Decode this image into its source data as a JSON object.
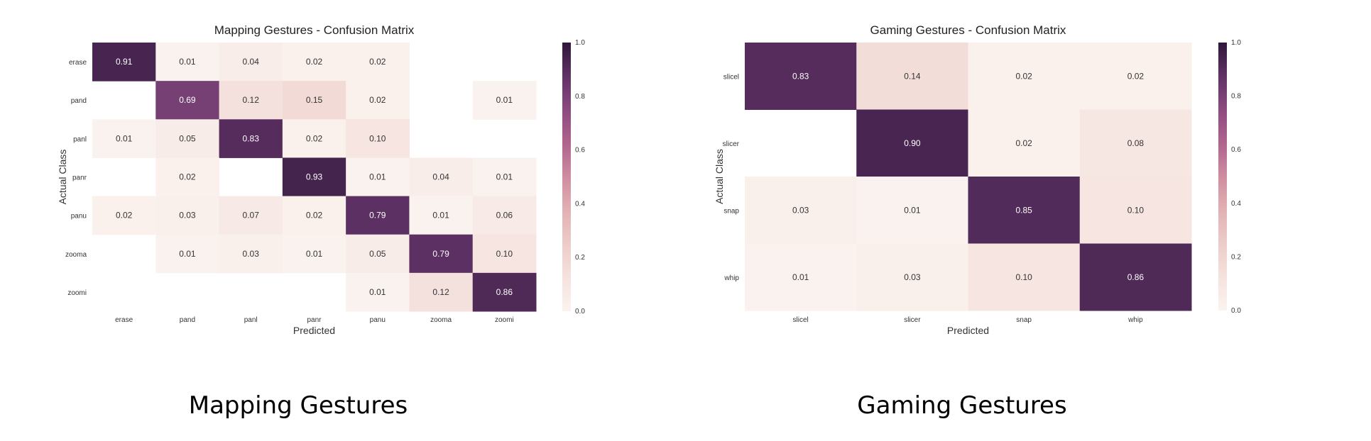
{
  "chart_data": [
    {
      "type": "heatmap",
      "title": "Mapping Gestures - Confusion Matrix",
      "xlabel": "Predicted",
      "ylabel": "Actual Class",
      "rows": [
        "erase",
        "pand",
        "panl",
        "panr",
        "panu",
        "zooma",
        "zoomi"
      ],
      "columns": [
        "erase",
        "pand",
        "panl",
        "panr",
        "panu",
        "zooma",
        "zoomi"
      ],
      "values": [
        [
          0.91,
          0.01,
          0.04,
          0.02,
          0.02,
          null,
          null
        ],
        [
          null,
          0.69,
          0.12,
          0.15,
          0.02,
          null,
          0.01
        ],
        [
          0.01,
          0.05,
          0.83,
          0.02,
          0.1,
          null,
          null
        ],
        [
          null,
          0.02,
          null,
          0.93,
          0.01,
          0.04,
          0.01
        ],
        [
          0.02,
          0.03,
          0.07,
          0.02,
          0.79,
          0.01,
          0.06
        ],
        [
          null,
          0.01,
          0.03,
          0.01,
          0.05,
          0.79,
          0.1
        ],
        [
          null,
          null,
          null,
          null,
          0.01,
          0.12,
          0.86
        ]
      ],
      "value_labels": [
        [
          "0.91",
          "0.01",
          "0.04",
          "0.02",
          "0.02",
          "",
          ""
        ],
        [
          "",
          "0.69",
          "0.12",
          "0.15",
          "0.02",
          "",
          "0.01"
        ],
        [
          "0.01",
          "0.05",
          "0.83",
          "0.02",
          "0.10",
          "",
          ""
        ],
        [
          "",
          "0.02",
          "",
          "0.93",
          "0.01",
          "0.04",
          "0.01"
        ],
        [
          "0.02",
          "0.03",
          "0.07",
          "0.02",
          "0.79",
          "0.01",
          "0.06"
        ],
        [
          "",
          "0.01",
          "0.03",
          "0.01",
          "0.05",
          "0.79",
          "0.10"
        ],
        [
          "",
          "",
          "",
          "",
          "0.01",
          "0.12",
          "0.86"
        ]
      ],
      "colorbar": {
        "range": [
          0.0,
          1.0
        ],
        "ticks": [
          "0.0",
          "0.2",
          "0.4",
          "0.6",
          "0.8",
          "1.0"
        ]
      },
      "caption": "Mapping Gestures"
    },
    {
      "type": "heatmap",
      "title": "Gaming Gestures - Confusion Matrix",
      "xlabel": "Predicted",
      "ylabel": "Actual Class",
      "rows": [
        "slicel",
        "slicer",
        "snap",
        "whip"
      ],
      "columns": [
        "slicel",
        "slicer",
        "snap",
        "whip"
      ],
      "values": [
        [
          0.83,
          0.14,
          0.02,
          0.02
        ],
        [
          null,
          0.9,
          0.02,
          0.08
        ],
        [
          0.03,
          0.01,
          0.85,
          0.1
        ],
        [
          0.01,
          0.03,
          0.1,
          0.86
        ]
      ],
      "value_labels": [
        [
          "0.83",
          "0.14",
          "0.02",
          "0.02"
        ],
        [
          "",
          "0.90",
          "0.02",
          "0.08"
        ],
        [
          "0.03",
          "0.01",
          "0.85",
          "0.10"
        ],
        [
          "0.01",
          "0.03",
          "0.10",
          "0.86"
        ]
      ],
      "colorbar": {
        "range": [
          0.0,
          1.0
        ],
        "ticks": [
          "0.0",
          "0.2",
          "0.4",
          "0.6",
          "0.8",
          "1.0"
        ]
      },
      "caption": "Gaming Gestures"
    }
  ],
  "colors": {
    "scale": [
      "#fbf3ef",
      "#f5e3df",
      "#ecccc8",
      "#e2b4b5",
      "#c97f96",
      "#a25984",
      "#7e4479",
      "#5e3165",
      "#4a2752",
      "#3b1e45"
    ],
    "text_light": "#ffffff",
    "text_dark": "#333333"
  }
}
